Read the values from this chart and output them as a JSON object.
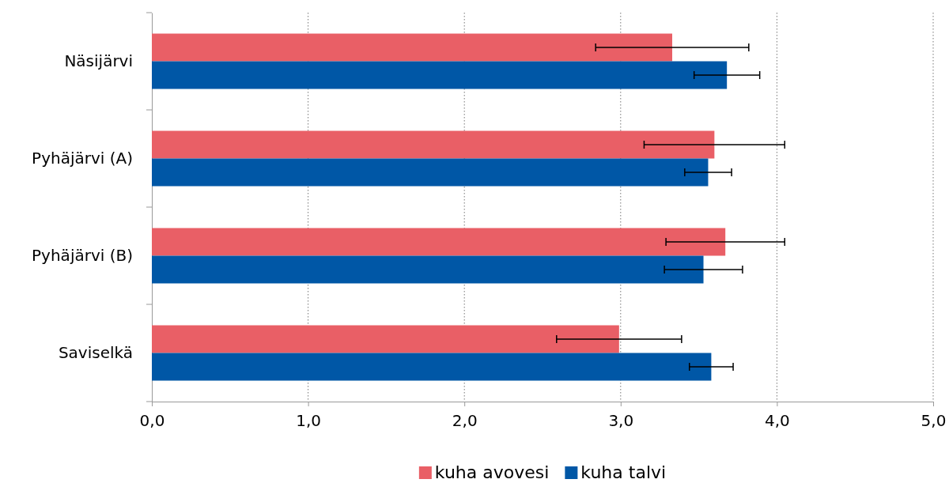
{
  "chart_data": {
    "type": "bar",
    "orientation": "horizontal",
    "categories": [
      "Näsijärvi",
      "Pyhäjärvi (A)",
      "Pyhäjärvi (B)",
      "Saviselkä"
    ],
    "series": [
      {
        "name": "kuha avovesi",
        "color": "#e95f66",
        "values": [
          3.33,
          3.6,
          3.67,
          2.99
        ],
        "errors": [
          0.49,
          0.45,
          0.38,
          0.4
        ]
      },
      {
        "name": "kuha talvi",
        "color": "#0057a6",
        "values": [
          3.68,
          3.56,
          3.53,
          3.58
        ],
        "errors": [
          0.21,
          0.15,
          0.25,
          0.14
        ]
      }
    ],
    "xlim": [
      0,
      5
    ],
    "xticks": [
      {
        "value": 0,
        "label": "0,0"
      },
      {
        "value": 1,
        "label": "1,0"
      },
      {
        "value": 2,
        "label": "2,0"
      },
      {
        "value": 3,
        "label": "3,0"
      },
      {
        "value": 4,
        "label": "4,0"
      },
      {
        "value": 5,
        "label": "5,0"
      }
    ],
    "grid": "x",
    "legend": "bottom"
  }
}
